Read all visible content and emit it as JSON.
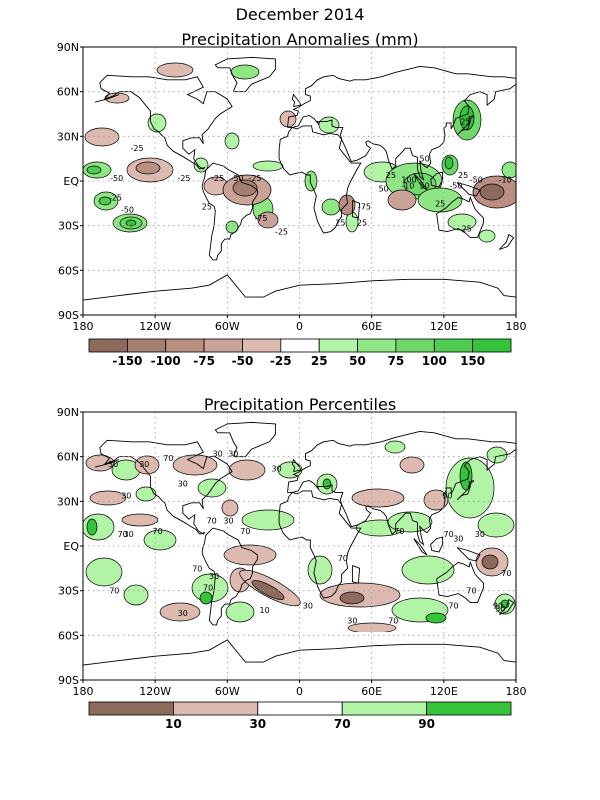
{
  "page": {
    "title": "December 2014"
  },
  "anomaly_map": {
    "title": "Precipitation Anomalies (mm)",
    "lat_labels": [
      "90N",
      "60N",
      "30N",
      "EQ",
      "30S",
      "60S",
      "90S"
    ],
    "lon_labels": [
      "180",
      "120W",
      "60W",
      "0",
      "60E",
      "120E",
      "180"
    ],
    "colorbar": {
      "colors": [
        "#8c6a5c",
        "#a47e70",
        "#b98f82",
        "#caa398",
        "#dcbab0",
        "#ffffff",
        "#b2f4a6",
        "#8fe684",
        "#6fd86a",
        "#4fcb52",
        "#36c33c"
      ],
      "labels": [
        "-150",
        "-100",
        "-75",
        "-50",
        "-25",
        "25",
        "50",
        "75",
        "100",
        "150"
      ]
    },
    "contour_labels": [
      {
        "text": "-25",
        "lon": -135,
        "lat": 22
      },
      {
        "text": "-50",
        "lon": -152,
        "lat": 2
      },
      {
        "text": "-25",
        "lon": -153,
        "lat": -11
      },
      {
        "text": "-50",
        "lon": -143,
        "lat": -19
      },
      {
        "text": "-25",
        "lon": -96,
        "lat": 2
      },
      {
        "text": "-25",
        "lon": -68,
        "lat": 2
      },
      {
        "text": "-50",
        "lon": -52,
        "lat": 2
      },
      {
        "text": "-25",
        "lon": -37,
        "lat": 2
      },
      {
        "text": "25",
        "lon": -77,
        "lat": -17
      },
      {
        "text": "-75",
        "lon": -32,
        "lat": -25
      },
      {
        "text": "-25",
        "lon": -15,
        "lat": -34
      },
      {
        "text": "-75",
        "lon": 54,
        "lat": -17
      },
      {
        "text": "25",
        "lon": 34,
        "lat": -28
      },
      {
        "text": "25",
        "lon": 52,
        "lat": -28
      },
      {
        "text": "25",
        "lon": 76,
        "lat": 4
      },
      {
        "text": "50",
        "lon": 104,
        "lat": 15
      },
      {
        "text": "-10",
        "lon": 90,
        "lat": -3
      },
      {
        "text": "100",
        "lon": 91,
        "lat": 1
      },
      {
        "text": "50",
        "lon": 104,
        "lat": -3
      },
      {
        "text": "25",
        "lon": 136,
        "lat": 4
      },
      {
        "text": "-50",
        "lon": 130,
        "lat": -3
      },
      {
        "text": "-50",
        "lon": 147,
        "lat": 1
      },
      {
        "text": "-10",
        "lon": 171,
        "lat": 1
      },
      {
        "text": "25",
        "lon": 117,
        "lat": -15
      },
      {
        "text": "25",
        "lon": 139,
        "lat": -32
      },
      {
        "text": "50",
        "lon": 70,
        "lat": -5
      },
      {
        "text": "25",
        "lon": 138,
        "lat": 40
      }
    ]
  },
  "percentile_map": {
    "title": "Precipitation Percentiles",
    "lat_labels": [
      "90N",
      "60N",
      "30N",
      "EQ",
      "30S",
      "60S",
      "90S"
    ],
    "lon_labels": [
      "180",
      "120W",
      "60W",
      "0",
      "60E",
      "120E",
      "180"
    ],
    "colorbar": {
      "colors": [
        "#8c6a5c",
        "#dcbab0",
        "#ffffff",
        "#b2f4a6",
        "#36c33c"
      ],
      "labels": [
        "10",
        "30",
        "70",
        "90"
      ]
    },
    "contour_labels": [
      {
        "text": "30",
        "lon": -155,
        "lat": 55
      },
      {
        "text": "30",
        "lon": -144,
        "lat": 34
      },
      {
        "text": "30",
        "lon": -129,
        "lat": 55
      },
      {
        "text": "70",
        "lon": -109,
        "lat": 59
      },
      {
        "text": "30",
        "lon": -97,
        "lat": 42
      },
      {
        "text": "30",
        "lon": -68,
        "lat": 62
      },
      {
        "text": "30",
        "lon": -55,
        "lat": 62
      },
      {
        "text": "30",
        "lon": -19,
        "lat": 52
      },
      {
        "text": "30",
        "lon": -59,
        "lat": 17
      },
      {
        "text": "70",
        "lon": -118,
        "lat": 10
      },
      {
        "text": "70",
        "lon": -147,
        "lat": 8
      },
      {
        "text": "30",
        "lon": -142,
        "lat": 8
      },
      {
        "text": "70",
        "lon": -154,
        "lat": -30
      },
      {
        "text": "70",
        "lon": -73,
        "lat": 17
      },
      {
        "text": "70",
        "lon": -45,
        "lat": 10
      },
      {
        "text": "70",
        "lon": -85,
        "lat": -15
      },
      {
        "text": "30",
        "lon": -71,
        "lat": -20
      },
      {
        "text": "70",
        "lon": -76,
        "lat": -28
      },
      {
        "text": "10",
        "lon": -29,
        "lat": -43
      },
      {
        "text": "30",
        "lon": -97,
        "lat": -45
      },
      {
        "text": "30",
        "lon": 7,
        "lat": -40
      },
      {
        "text": "70",
        "lon": 36,
        "lat": -8
      },
      {
        "text": "30",
        "lon": 44,
        "lat": -50
      },
      {
        "text": "70",
        "lon": 78,
        "lat": -50
      },
      {
        "text": "70",
        "lon": 83,
        "lat": 10
      },
      {
        "text": "90",
        "lon": 123,
        "lat": 34
      },
      {
        "text": "70",
        "lon": 124,
        "lat": 8
      },
      {
        "text": "30",
        "lon": 132,
        "lat": 5
      },
      {
        "text": "30",
        "lon": 150,
        "lat": 8
      },
      {
        "text": "70",
        "lon": 143,
        "lat": -30
      },
      {
        "text": "70",
        "lon": 128,
        "lat": -40
      },
      {
        "text": "90",
        "lon": 165,
        "lat": -40
      },
      {
        "text": "30",
        "lon": 167,
        "lat": -42
      },
      {
        "text": "70",
        "lon": 172,
        "lat": -18
      }
    ]
  }
}
